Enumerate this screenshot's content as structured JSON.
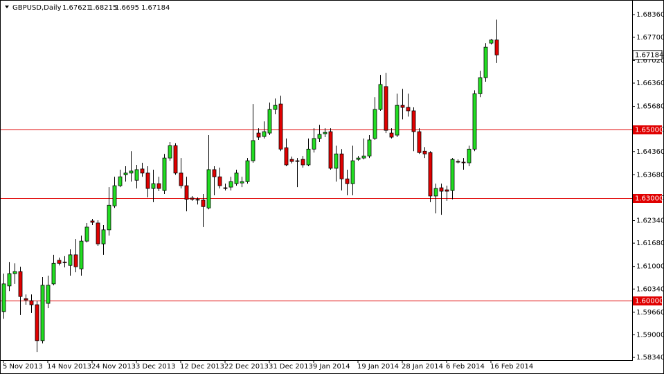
{
  "chart_data": {
    "type": "candlestick",
    "title": "GBPUSD,Daily",
    "categories": [
      "5 Nov 2013",
      null,
      null,
      null,
      null,
      null,
      null,
      null,
      "14 Nov 2013",
      null,
      null,
      null,
      null,
      null,
      null,
      null,
      "24 Nov 2013",
      null,
      null,
      null,
      null,
      null,
      null,
      null,
      "3 Dec 2013",
      null,
      null,
      null,
      null,
      null,
      null,
      null,
      "12 Dec 2013",
      null,
      null,
      null,
      null,
      null,
      null,
      null,
      "22 Dec 2013",
      null,
      null,
      null,
      null,
      null,
      null,
      null,
      "31 Dec 2013",
      null,
      null,
      null,
      null,
      null,
      null,
      null,
      "9 Jan 2014",
      null,
      null,
      null,
      null,
      null,
      null,
      null,
      "19 Jan 2014",
      null,
      null,
      null,
      null,
      null,
      null,
      null,
      "28 Jan 2014",
      null,
      null,
      null,
      null,
      null,
      null,
      null,
      "6 Feb 2014",
      null,
      null,
      null,
      null,
      null,
      null,
      null,
      "16 Feb 2014",
      null
    ],
    "open": [
      1.5968,
      1.6043,
      1.6079,
      1.6085,
      1.6006,
      1.6,
      1.5988,
      1.5883,
      1.5992,
      1.6049,
      1.6118,
      1.6113,
      1.6103,
      1.6134,
      1.6093,
      1.6174,
      1.6233,
      1.6227,
      1.6166,
      1.6207,
      1.6277,
      1.6336,
      1.6368,
      1.6373,
      1.6352,
      1.6385,
      1.6373,
      1.6328,
      1.6342,
      1.6322,
      1.6417,
      1.6453,
      1.6373,
      1.6336,
      1.63,
      1.6296,
      1.6294,
      1.6271,
      1.6383,
      1.6362,
      1.633,
      1.6332,
      1.6342,
      1.6344,
      1.6348,
      1.6409,
      1.649,
      1.648,
      1.649,
      1.6559,
      1.6575,
      1.6447,
      1.6413,
      1.6409,
      1.6413,
      1.6397,
      1.6443,
      1.6474,
      1.6488,
      1.6494,
      1.6387,
      1.6429,
      1.6356,
      1.6342,
      1.6413,
      1.6417,
      1.6423,
      1.6474,
      1.6559,
      1.6626,
      1.649,
      1.6484,
      1.6571,
      1.6565,
      1.6555,
      1.6494,
      1.6437,
      1.6433,
      1.6306,
      1.633,
      1.6324,
      1.6322,
      1.6407,
      1.6405,
      1.6403,
      1.6443,
      1.6605,
      1.6652,
      1.6753,
      1.67621
    ],
    "high": [
      1.6079,
      1.6113,
      1.6109,
      1.6099,
      1.6018,
      1.6018,
      1.5998,
      1.6069,
      1.6073,
      1.6134,
      1.6126,
      1.613,
      1.615,
      1.618,
      1.619,
      1.6227,
      1.6239,
      1.6235,
      1.6221,
      1.6332,
      1.6362,
      1.6383,
      1.6393,
      1.6437,
      1.6397,
      1.6403,
      1.6393,
      1.6383,
      1.6362,
      1.6429,
      1.6464,
      1.646,
      1.6417,
      1.6362,
      1.6306,
      1.6302,
      1.6312,
      1.6484,
      1.6393,
      1.6389,
      1.6342,
      1.6362,
      1.6383,
      1.6362,
      1.6417,
      1.6575,
      1.6504,
      1.6524,
      1.6579,
      1.6591,
      1.6599,
      1.6474,
      1.6421,
      1.6417,
      1.6423,
      1.6474,
      1.6504,
      1.6514,
      1.6504,
      1.6504,
      1.6453,
      1.6443,
      1.6383,
      1.6453,
      1.6423,
      1.6474,
      1.6484,
      1.6595,
      1.666,
      1.6666,
      1.6504,
      1.6605,
      1.6619,
      1.6605,
      1.6565,
      1.6504,
      1.6449,
      1.6437,
      1.6342,
      1.6342,
      1.6336,
      1.6417,
      1.6413,
      1.6417,
      1.6453,
      1.6615,
      1.6672,
      1.6753,
      1.6765,
      1.68215
    ],
    "low": [
      1.5947,
      1.6028,
      1.6049,
      1.5958,
      1.5988,
      1.5964,
      1.585,
      1.5875,
      1.5978,
      1.6045,
      1.6103,
      1.6097,
      1.6073,
      1.6083,
      1.6073,
      1.617,
      1.6221,
      1.616,
      1.6134,
      1.619,
      1.6271,
      1.6332,
      1.6348,
      1.6348,
      1.6328,
      1.6362,
      1.6302,
      1.6288,
      1.632,
      1.6312,
      1.6409,
      1.6368,
      1.6328,
      1.6261,
      1.6292,
      1.6281,
      1.6215,
      1.6267,
      1.6308,
      1.6328,
      1.6322,
      1.6322,
      1.6336,
      1.6332,
      1.6342,
      1.6403,
      1.647,
      1.6474,
      1.6484,
      1.6545,
      1.6437,
      1.6393,
      1.6401,
      1.6332,
      1.6389,
      1.6393,
      1.6433,
      1.6464,
      1.6478,
      1.6383,
      1.6348,
      1.6322,
      1.6308,
      1.6308,
      1.6409,
      1.6413,
      1.6417,
      1.647,
      1.6555,
      1.649,
      1.6474,
      1.6478,
      1.653,
      1.6538,
      1.6437,
      1.6429,
      1.6417,
      1.6288,
      1.6255,
      1.6251,
      1.6292,
      1.6296,
      1.6401,
      1.6383,
      1.6393,
      1.6437,
      1.6595,
      1.664,
      1.6749,
      1.6695
    ],
    "close": [
      1.6049,
      1.6079,
      1.6085,
      1.6012,
      1.6002,
      1.5988,
      1.5883,
      1.6045,
      1.6045,
      1.6109,
      1.6109,
      1.6111,
      1.6134,
      1.6099,
      1.6174,
      1.6215,
      1.6229,
      1.6166,
      1.6207,
      1.6279,
      1.6336,
      1.6362,
      1.6373,
      1.6379,
      1.6383,
      1.6373,
      1.6328,
      1.6342,
      1.6328,
      1.6417,
      1.6453,
      1.6373,
      1.6336,
      1.6296,
      1.6296,
      1.6294,
      1.6275,
      1.6383,
      1.6362,
      1.6336,
      1.6328,
      1.6348,
      1.6373,
      1.6348,
      1.6409,
      1.6468,
      1.6478,
      1.6494,
      1.6559,
      1.6571,
      1.6443,
      1.6397,
      1.6407,
      1.6407,
      1.6397,
      1.6443,
      1.6474,
      1.6486,
      1.6492,
      1.6387,
      1.6429,
      1.6356,
      1.6342,
      1.6409,
      1.6417,
      1.6423,
      1.647,
      1.6559,
      1.6632,
      1.6498,
      1.6478,
      1.6571,
      1.6565,
      1.6555,
      1.6494,
      1.6433,
      1.6429,
      1.6306,
      1.6328,
      1.632,
      1.632,
      1.6413,
      1.6405,
      1.6403,
      1.6443,
      1.6605,
      1.6652,
      1.6741,
      1.6762,
      1.67184
    ],
    "up_color": "#22dd22",
    "down_color": "#e00000",
    "level_color": "#e00000",
    "levels": [
      {
        "value": 1.65,
        "label": "1.65000"
      },
      {
        "value": 1.63,
        "label": "1.63000"
      },
      {
        "value": 1.6,
        "label": "1.60000"
      }
    ],
    "ylim": [
      1.5826,
      1.6879
    ],
    "yticks": [
      {
        "value": 1.6836,
        "label": "1.68360"
      },
      {
        "value": 1.677,
        "label": "1.67700"
      },
      {
        "value": 1.6702,
        "label": "1.67020"
      },
      {
        "value": 1.6636,
        "label": "1.66360"
      },
      {
        "value": 1.6568,
        "label": "1.65680"
      },
      {
        "value": 1.65,
        "label": "1.65000"
      },
      {
        "value": 1.6436,
        "label": "1.64360"
      },
      {
        "value": 1.6368,
        "label": "1.63680"
      },
      {
        "value": 1.63,
        "label": "1.63000"
      },
      {
        "value": 1.6234,
        "label": "1.62340"
      },
      {
        "value": 1.6168,
        "label": "1.61680"
      },
      {
        "value": 1.61,
        "label": "1.61000"
      },
      {
        "value": 1.6034,
        "label": "1.60340"
      },
      {
        "value": 1.5966,
        "label": "1.59660"
      },
      {
        "value": 1.59,
        "label": "1.59000"
      },
      {
        "value": 1.5834,
        "label": "1.58340"
      }
    ],
    "grid": false
  }
}
